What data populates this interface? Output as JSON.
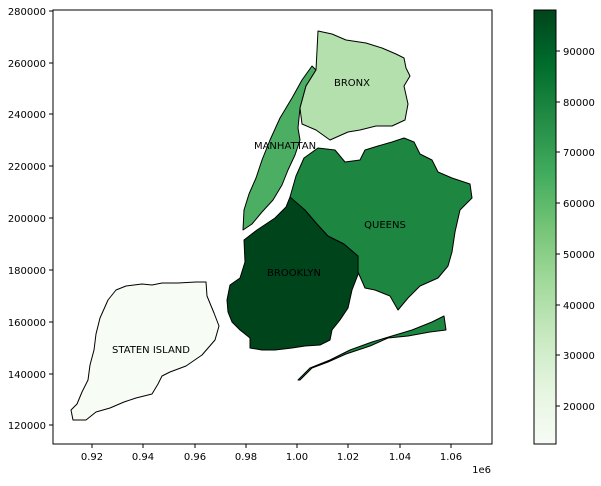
{
  "chart_data": {
    "type": "choropleth",
    "cmap": "Greens",
    "x_ticks": [
      "0.92",
      "0.94",
      "0.96",
      "0.98",
      "1.00",
      "1.02",
      "1.04",
      "1.06"
    ],
    "x_offset_label": "1e6",
    "y_ticks": [
      "120000",
      "140000",
      "160000",
      "180000",
      "200000",
      "220000",
      "240000",
      "260000",
      "280000"
    ],
    "xlim": [
      905000,
      1075000
    ],
    "ylim": [
      113000,
      281000
    ],
    "colorbar": {
      "ticks": [
        "20000",
        "30000",
        "40000",
        "50000",
        "60000",
        "70000",
        "80000",
        "90000"
      ],
      "range": [
        12000,
        98500
      ]
    },
    "regions": [
      {
        "name": "BRONX",
        "value": 35000,
        "color": "#b3e0ad"
      },
      {
        "name": "MANHATTAN",
        "value": 63000,
        "color": "#4cae63"
      },
      {
        "name": "QUEENS",
        "value": 77000,
        "color": "#1d8641"
      },
      {
        "name": "BROOKLYN",
        "value": 98500,
        "color": "#00441b"
      },
      {
        "name": "STATEN ISLAND",
        "value": 12000,
        "color": "#f7fcf5"
      }
    ],
    "colors": {
      "low": "#f7fcf5",
      "high": "#00441b",
      "edge": "#000000"
    }
  }
}
